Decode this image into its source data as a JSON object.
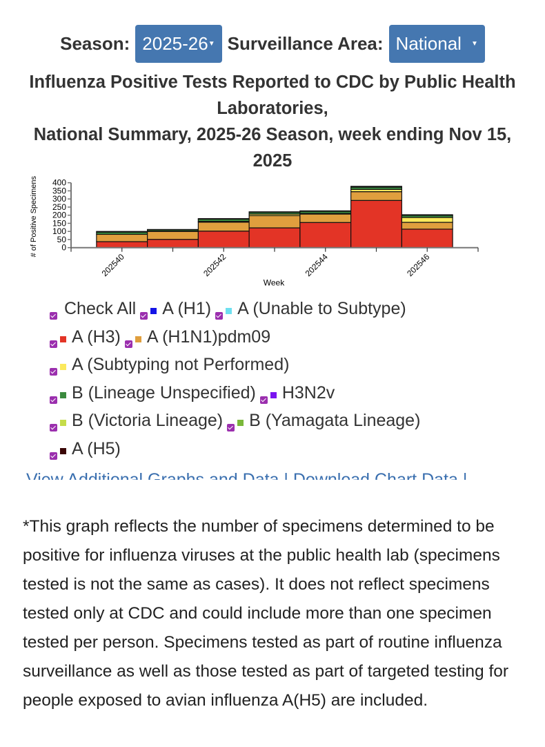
{
  "controls": {
    "season_label": "Season:",
    "season_value": "2025-26",
    "area_label": "Surveillance Area:",
    "area_value": "National"
  },
  "title_lines": [
    "Influenza Positive Tests Reported to CDC by Public Health Laboratories,",
    "National Summary, 2025-26 Season, week ending Nov 15, 2025"
  ],
  "chart_data": {
    "type": "bar",
    "stacked": true,
    "xlabel": "Week",
    "ylabel": "# of Positive Specimens",
    "ylim": [
      0,
      400
    ],
    "yticks": [
      0,
      50,
      100,
      150,
      200,
      250,
      300,
      350,
      400
    ],
    "categories": [
      "202540",
      "202541",
      "202542",
      "202543",
      "202544",
      "202545",
      "202546"
    ],
    "tick_labels": [
      "202540",
      "202542",
      "202544",
      "202546"
    ],
    "series": [
      {
        "name": "A (H3)",
        "color": "#e33426",
        "values": [
          37,
          51,
          102,
          122,
          155,
          291,
          114
        ]
      },
      {
        "name": "A (H1N1)pdm09",
        "color": "#e09f3e",
        "values": [
          45,
          49,
          55,
          75,
          52,
          54,
          42
        ]
      },
      {
        "name": "A (Subtyping not Performed)",
        "color": "#fbe95c",
        "values": [
          0,
          2,
          5,
          10,
          4,
          14,
          30
        ]
      },
      {
        "name": "B (Lineage Unspecified)",
        "color": "#3a8a3e",
        "values": [
          14,
          8,
          14,
          11,
          13,
          14,
          13
        ]
      },
      {
        "name": "B (Victoria Lineage)",
        "color": "#c5dc4a",
        "values": [
          4,
          2,
          3,
          3,
          3,
          5,
          4
        ]
      }
    ]
  },
  "legend": [
    {
      "label": "Check All",
      "color": null
    },
    {
      "label": "A (H1)",
      "color": "#1414e6"
    },
    {
      "label": "A (Unable to Subtype)",
      "color": "#6ee0f0"
    },
    {
      "label": "A (H3)",
      "color": "#e33426"
    },
    {
      "label": "A (H1N1)pdm09",
      "color": "#e09f3e"
    },
    {
      "label": "A (Subtyping not Performed)",
      "color": "#fbe95c"
    },
    {
      "label": "B (Lineage Unspecified)",
      "color": "#3a8a3e"
    },
    {
      "label": "H3N2v",
      "color": "#7a14f0"
    },
    {
      "label": "B (Victoria Lineage)",
      "color": "#c5dc4a"
    },
    {
      "label": "B (Yamagata Lineage)",
      "color": "#7ab83a"
    },
    {
      "label": "A (H5)",
      "color": "#3a0606"
    }
  ],
  "links": {
    "additional": "View Additional Graphs and Data",
    "download": "Download Chart Data",
    "sep": "|"
  },
  "note": "*This graph reflects the number of specimens determined to be positive for influenza viruses at the public health lab (specimens tested is not the same as cases). It does not reflect specimens tested only at CDC and could include more than one specimen tested per person. Specimens tested as part of routine influenza surveillance as well as those tested as part of targeted testing for people exposed to avian influenza A(H5) are included."
}
